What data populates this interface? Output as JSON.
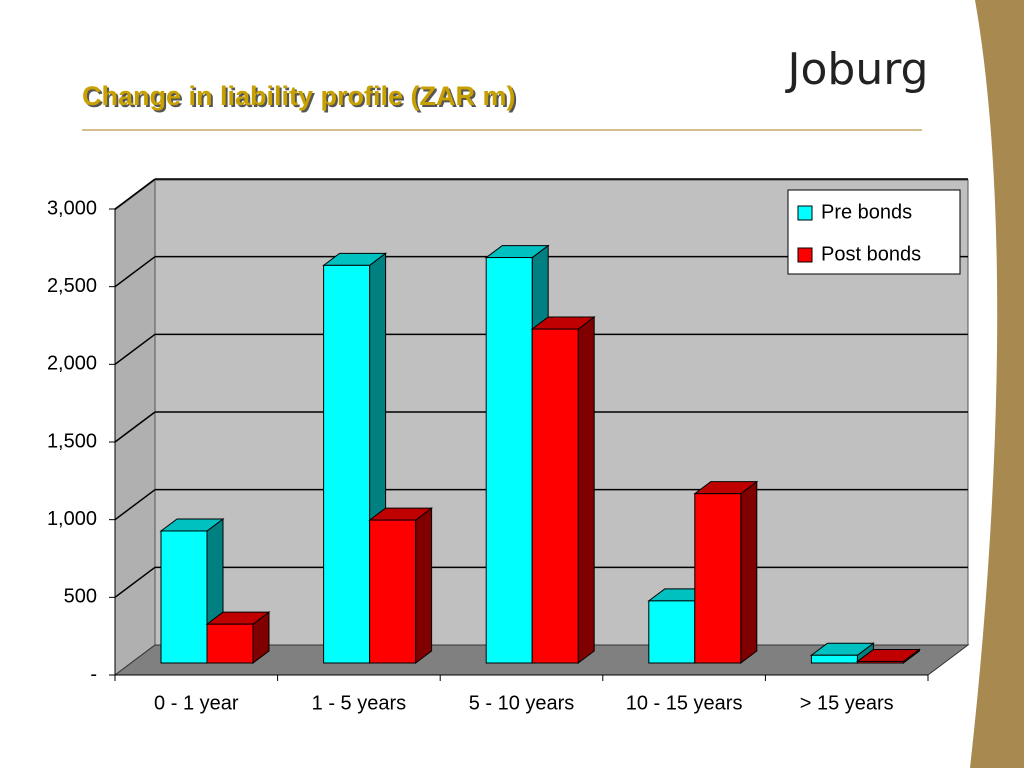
{
  "logo": "Joburg",
  "chart_data": {
    "type": "bar3d",
    "title": "Change in liability profile (ZAR m)",
    "categories": [
      "0 - 1 year",
      "1 - 5 years",
      "5 - 10 years",
      "10 - 15 years",
      "> 15 years"
    ],
    "series": [
      {
        "name": "Pre bonds",
        "color": "#00ffff",
        "values": [
          850,
          2560,
          2610,
          400,
          50
        ]
      },
      {
        "name": "Post bonds",
        "color": "#ff0000",
        "values": [
          250,
          920,
          2150,
          1090,
          10
        ]
      }
    ],
    "ylim": [
      0,
      3000
    ],
    "yticks": [
      {
        "value": 0,
        "label": "-"
      },
      500,
      {
        "value": 1000,
        "label": "1,000"
      },
      {
        "value": 1500,
        "label": "1,500"
      },
      {
        "value": 2000,
        "label": "2,000"
      },
      {
        "value": 2500,
        "label": "2,500"
      },
      {
        "value": 3000,
        "label": "3,000"
      }
    ],
    "grid": true,
    "legend": "top-right"
  }
}
